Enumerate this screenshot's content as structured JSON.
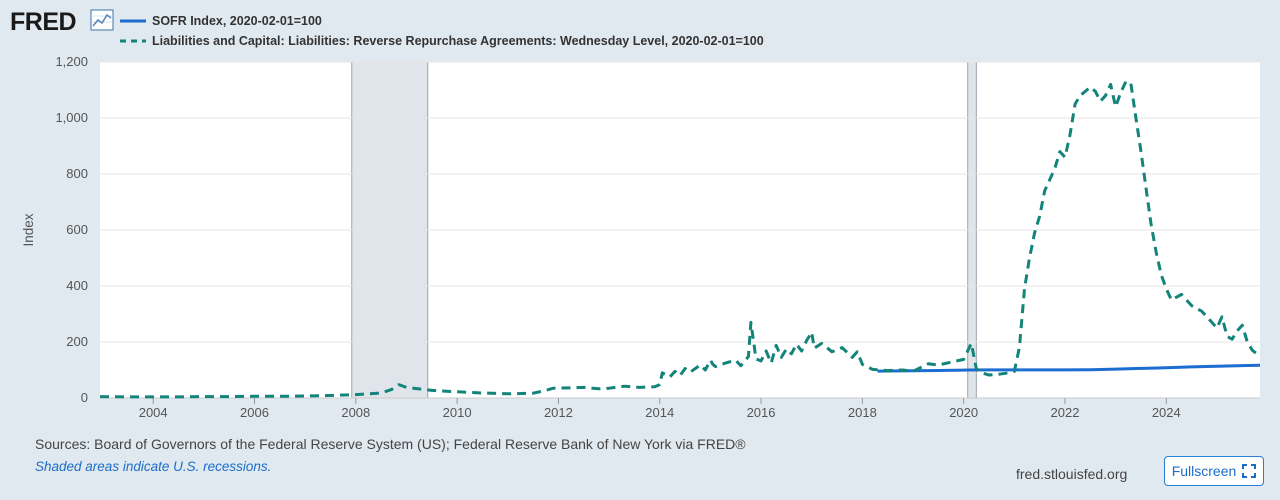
{
  "header": {
    "logo_text": "FRED",
    "logo_icon": "line-chart-icon"
  },
  "legend": [
    {
      "label": "SOFR Index, 2020-02-01=100",
      "color": "#1c6dd0",
      "style": "solid"
    },
    {
      "label": "Liabilities and Capital: Liabilities: Reverse Repurchase Agreements: Wednesday Level, 2020-02-01=100",
      "color": "#12847a",
      "style": "dashed"
    }
  ],
  "chart_data": {
    "type": "line",
    "title": "",
    "xlabel": "",
    "ylabel": "Index",
    "xlim": [
      2002.95,
      2025.85
    ],
    "ylim": [
      0,
      1200
    ],
    "yticks": [
      0,
      200,
      400,
      600,
      800,
      1000,
      1200
    ],
    "ytick_labels": [
      "0",
      "200",
      "400",
      "600",
      "800",
      "1,000",
      "1,200"
    ],
    "xticks": [
      2004,
      2006,
      2008,
      2010,
      2012,
      2014,
      2016,
      2018,
      2020,
      2022,
      2024
    ],
    "xtick_labels": [
      "2004",
      "2006",
      "2008",
      "2010",
      "2012",
      "2014",
      "2016",
      "2018",
      "2020",
      "2022",
      "2024"
    ],
    "grid": true,
    "recessions": [
      {
        "start": 2007.92,
        "end": 2009.42
      },
      {
        "start": 2020.08,
        "end": 2020.25
      }
    ],
    "series": [
      {
        "name": "SOFR Index, 2020-02-01=100",
        "color": "#1c6dd0",
        "style": "solid",
        "x": [
          2018.3,
          2018.5,
          2019.0,
          2019.5,
          2020.0,
          2020.1,
          2020.5,
          2021.0,
          2021.5,
          2022.0,
          2022.5,
          2023.0,
          2023.5,
          2024.0,
          2024.5,
          2025.0,
          2025.5,
          2025.85
        ],
        "values": [
          96,
          96.5,
          97.3,
          98.3,
          99.6,
          100,
          100.3,
          100.4,
          100.4,
          100.5,
          101.2,
          103.1,
          105.6,
          108.3,
          111,
          113.6,
          115.8,
          117
        ]
      },
      {
        "name": "Liabilities and Capital: Liabilities: Reverse Repurchase Agreements: Wednesday Level, 2020-02-01=100",
        "color": "#12847a",
        "style": "dashed",
        "x": [
          2002.95,
          2003.5,
          2004.0,
          2004.5,
          2005.0,
          2005.5,
          2006.0,
          2006.5,
          2007.0,
          2007.5,
          2008.0,
          2008.5,
          2008.7,
          2008.85,
          2009.0,
          2009.5,
          2010.0,
          2010.5,
          2011.0,
          2011.5,
          2011.7,
          2011.9,
          2012.2,
          2012.5,
          2012.8,
          2013.0,
          2013.3,
          2013.6,
          2013.9,
          2014.0,
          2014.05,
          2014.2,
          2014.3,
          2014.4,
          2014.5,
          2014.6,
          2014.8,
          2014.9,
          2015.0,
          2015.05,
          2015.1,
          2015.3,
          2015.5,
          2015.6,
          2015.75,
          2015.8,
          2015.9,
          2016.0,
          2016.1,
          2016.2,
          2016.3,
          2016.4,
          2016.5,
          2016.6,
          2016.7,
          2016.8,
          2016.9,
          2017.0,
          2017.05,
          2017.2,
          2017.4,
          2017.6,
          2017.8,
          2017.9,
          2018.0,
          2018.2,
          2018.5,
          2018.8,
          2019.0,
          2019.3,
          2019.5,
          2019.8,
          2020.0,
          2020.15,
          2020.25,
          2020.35,
          2020.5,
          2020.7,
          2020.9,
          2021.0,
          2021.1,
          2021.2,
          2021.3,
          2021.4,
          2021.5,
          2021.6,
          2021.7,
          2021.8,
          2021.9,
          2022.0,
          2022.1,
          2022.2,
          2022.3,
          2022.4,
          2022.5,
          2022.6,
          2022.7,
          2022.8,
          2022.9,
          2023.0,
          2023.1,
          2023.2,
          2023.3,
          2023.4,
          2023.5,
          2023.6,
          2023.7,
          2023.8,
          2023.9,
          2024.0,
          2024.1,
          2024.3,
          2024.5,
          2024.7,
          2024.9,
          2025.0,
          2025.1,
          2025.2,
          2025.3,
          2025.4,
          2025.5,
          2025.6,
          2025.7,
          2025.85
        ],
        "values": [
          5,
          4,
          4,
          4,
          5,
          5,
          6,
          6,
          7,
          9,
          12,
          18,
          30,
          48,
          38,
          27,
          22,
          18,
          15,
          17,
          25,
          35,
          36,
          38,
          33,
          35,
          42,
          38,
          40,
          48,
          90,
          75,
          95,
          80,
          105,
          92,
          118,
          100,
          135,
          120,
          112,
          125,
          135,
          115,
          148,
          270,
          140,
          132,
          168,
          125,
          188,
          145,
          175,
          158,
          192,
          168,
          205,
          235,
          178,
          195,
          165,
          180,
          145,
          165,
          120,
          102,
          98,
          100,
          95,
          122,
          118,
          130,
          138,
          195,
          105,
          90,
          82,
          85,
          90,
          95,
          180,
          390,
          500,
          590,
          650,
          740,
          780,
          820,
          880,
          860,
          940,
          1050,
          1080,
          1095,
          1110,
          1095,
          1060,
          1080,
          1120,
          1040,
          1090,
          1130,
          1125,
          1000,
          880,
          750,
          620,
          520,
          440,
          390,
          350,
          370,
          330,
          310,
          270,
          250,
          290,
          220,
          210,
          240,
          260,
          200,
          170,
          150
        ]
      }
    ]
  },
  "footer": {
    "sources": "Sources: Board of Governors of the Federal Reserve System (US); Federal Reserve Bank of New York via FRED®",
    "shaded_note": "Shaded areas indicate U.S. recessions.",
    "url": "fred.stlouisfed.org",
    "fullscreen_label": "Fullscreen"
  }
}
